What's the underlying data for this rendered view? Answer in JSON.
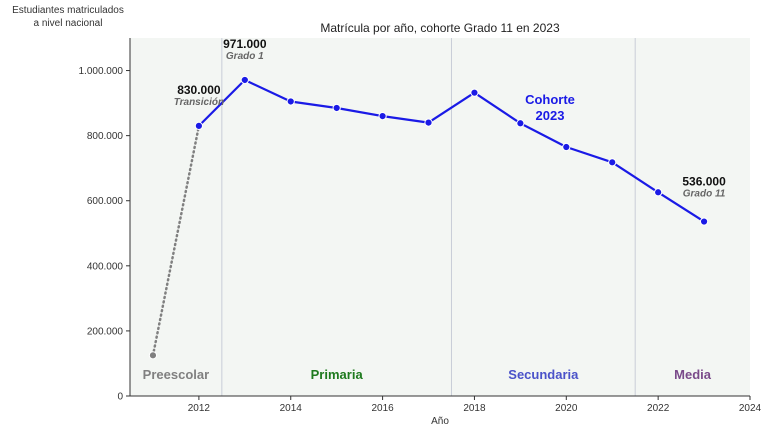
{
  "chart_data": {
    "type": "line",
    "title": "Matrícula por año, cohorte Grado 11 en 2023",
    "xlabel": "Año",
    "ylabel_lines": [
      "Estudiantes matriculados",
      "a nivel nacional"
    ],
    "xlim": [
      2010.5,
      2024
    ],
    "ylim": [
      0,
      1100000
    ],
    "xticks": [
      2012,
      2014,
      2016,
      2018,
      2020,
      2022,
      2024
    ],
    "xtick_labels": [
      "2012",
      "2014",
      "2016",
      "2018",
      "2020",
      "2022",
      "2024"
    ],
    "yticks": [
      0,
      200000,
      400000,
      600000,
      800000,
      1000000
    ],
    "ytick_labels": [
      "0",
      "200.000",
      "400.000",
      "600.000",
      "800.000",
      "1.000.000"
    ],
    "grid": false,
    "series": [
      {
        "style": "dotted",
        "color": "#808080",
        "x": [
          2011,
          2012
        ],
        "y": [
          125000,
          830000
        ]
      },
      {
        "style": "solid",
        "color": "#1a1ae6",
        "x": [
          2012,
          2013,
          2014,
          2015,
          2016,
          2017,
          2018,
          2019,
          2020,
          2021,
          2022,
          2023
        ],
        "y": [
          830000,
          971000,
          905000,
          885000,
          860000,
          840000,
          932000,
          838000,
          765000,
          718000,
          626000,
          536000
        ]
      }
    ],
    "stages": [
      {
        "label": "Preescolar",
        "from": 2010.5,
        "to": 2012.5,
        "color": "#808080"
      },
      {
        "label": "Primaria",
        "from": 2012.5,
        "to": 2017.5,
        "color": "#1e7a1e"
      },
      {
        "label": "Secundaria",
        "from": 2017.5,
        "to": 2021.5,
        "color": "#4a52c9"
      },
      {
        "label": "Media",
        "from": 2021.5,
        "to": 2024,
        "color": "#7a4a8a"
      }
    ],
    "stage_dividers": [
      2012.5,
      2017.5,
      2021.5
    ],
    "annotations": [
      {
        "x": 2012,
        "y": 830000,
        "value": "830.000",
        "sub": "Transición"
      },
      {
        "x": 2013,
        "y": 971000,
        "value": "971.000",
        "sub": "Grado 1"
      },
      {
        "x": 2023,
        "y": 536000,
        "value": "536.000",
        "sub": "Grado 11"
      }
    ],
    "cohort_label": [
      "Cohorte",
      "2023"
    ],
    "colors": {
      "plot_background": "#f3f6f3",
      "divider": "#c8cdd8",
      "axis": "#333333"
    }
  }
}
